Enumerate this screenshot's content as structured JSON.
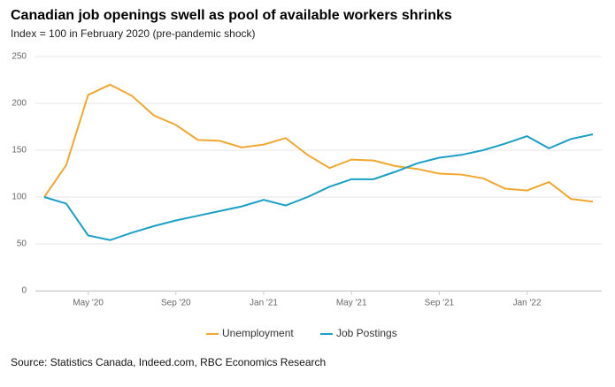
{
  "chart_data": {
    "type": "line",
    "title": "Canadian job openings swell as pool of available workers shrinks",
    "subtitle": "Index = 100 in February 2020 (pre-pandemic shock)",
    "source": "Source: Statistics Canada, Indeed.com, RBC Economics Research",
    "categories": [
      null,
      null,
      "May '20",
      null,
      null,
      null,
      "Sep '20",
      null,
      null,
      null,
      "Jan '21",
      null,
      null,
      null,
      "May '21",
      null,
      null,
      null,
      "Sep '21",
      null,
      null,
      null,
      "Jan '22",
      null,
      null,
      null
    ],
    "series": [
      {
        "name": "Unemployment",
        "color": "#f0a830",
        "values": [
          100,
          134,
          209,
          220,
          208,
          187,
          177,
          161,
          160,
          153,
          156,
          163,
          145,
          131,
          140,
          139,
          133,
          130,
          125,
          124,
          120,
          109,
          107,
          116,
          98,
          95
        ]
      },
      {
        "name": "Job Postings",
        "color": "#1aa0c4",
        "values": [
          100,
          93,
          59,
          54,
          62,
          69,
          75,
          80,
          85,
          90,
          97,
          91,
          100,
          111,
          119,
          119,
          127,
          136,
          142,
          145,
          150,
          157,
          165,
          152,
          162,
          167
        ]
      }
    ],
    "ylim": [
      0,
      250
    ],
    "yticks": [
      0,
      50,
      100,
      150,
      200,
      250
    ],
    "grid": true,
    "legend": "bottom"
  }
}
